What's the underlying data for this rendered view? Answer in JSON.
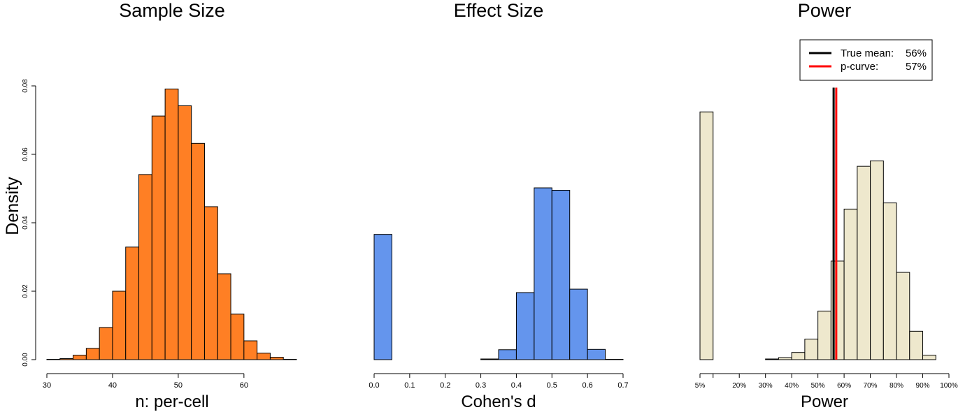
{
  "ylabel_shared": "Density",
  "chart_data": [
    {
      "type": "bar",
      "title": "Sample Size",
      "xlabel": "n: per-cell",
      "ylabel": "Density",
      "xlim": [
        30,
        68
      ],
      "ylim": [
        0,
        0.08
      ],
      "x_ticks": [
        30,
        40,
        50,
        60
      ],
      "x_tick_labels": [
        "30",
        "40",
        "50",
        "60"
      ],
      "y_ticks": [
        0,
        0.02,
        0.04,
        0.06,
        0.08
      ],
      "y_tick_labels": [
        "0.00",
        "0.02",
        "0.04",
        "0.06",
        "0.08"
      ],
      "bin_edges": [
        30,
        32,
        34,
        36,
        38,
        40,
        42,
        44,
        46,
        48,
        50,
        52,
        54,
        56,
        58,
        60,
        62,
        64,
        66,
        68
      ],
      "values": [
        0.0001,
        0.0003,
        0.0013,
        0.0033,
        0.0094,
        0.02,
        0.0329,
        0.0541,
        0.0712,
        0.0791,
        0.0742,
        0.0632,
        0.0447,
        0.0251,
        0.0133,
        0.0055,
        0.0019,
        0.0007,
        0.0001
      ],
      "color": "#FF7F24"
    },
    {
      "type": "bar",
      "title": "Effect Size",
      "xlabel": "Cohen's d",
      "xlim": [
        0,
        0.7
      ],
      "ylim": [
        0,
        0.08
      ],
      "x_ticks": [
        0,
        0.1,
        0.2,
        0.3,
        0.4,
        0.5,
        0.6,
        0.7
      ],
      "x_tick_labels": [
        "0.0",
        "0.1",
        "0.2",
        "0.3",
        "0.4",
        "0.5",
        "0.6",
        "0.7"
      ],
      "bin_edges": [
        0,
        0.05,
        0.1,
        0.15,
        0.2,
        0.25,
        0.3,
        0.35,
        0.4,
        0.45,
        0.5,
        0.55,
        0.6,
        0.65,
        0.7
      ],
      "values": [
        0.0366,
        0,
        0,
        0,
        0,
        0,
        0.0002,
        0.0029,
        0.0196,
        0.0502,
        0.0495,
        0.0206,
        0.003,
        0.0001
      ],
      "color": "#6495ED"
    },
    {
      "type": "bar",
      "title": "Power",
      "xlabel": "Power",
      "xlim": [
        5,
        100
      ],
      "ylim": [
        0,
        0.08
      ],
      "x_ticks": [
        5,
        20,
        30,
        40,
        50,
        60,
        70,
        80,
        90,
        100
      ],
      "x_tick_labels": [
        "5%",
        "20%",
        "30%",
        "40%",
        "50%",
        "60%",
        "70%",
        "80%",
        "90%",
        "100%"
      ],
      "minor_ticks": [
        10
      ],
      "bin_edges": [
        5,
        10,
        15,
        20,
        25,
        30,
        35,
        40,
        45,
        50,
        55,
        60,
        65,
        70,
        75,
        80,
        85,
        90,
        95,
        100
      ],
      "values": [
        0.0724,
        0,
        0,
        0,
        0,
        0.0002,
        0.0006,
        0.0021,
        0.006,
        0.0142,
        0.0288,
        0.044,
        0.0565,
        0.0581,
        0.0458,
        0.0255,
        0.0083,
        0.0013,
        0
      ],
      "color": "#EEE8CD",
      "vlines": [
        {
          "value": 56,
          "color": "#000000"
        },
        {
          "value": 57,
          "color": "#FF0000"
        }
      ],
      "legend": {
        "position": "top-right",
        "entries": [
          {
            "label": "True mean:",
            "value": "56%",
            "color": "#000000"
          },
          {
            "label": "p-curve:",
            "value": "57%",
            "color": "#FF0000"
          }
        ]
      }
    }
  ]
}
